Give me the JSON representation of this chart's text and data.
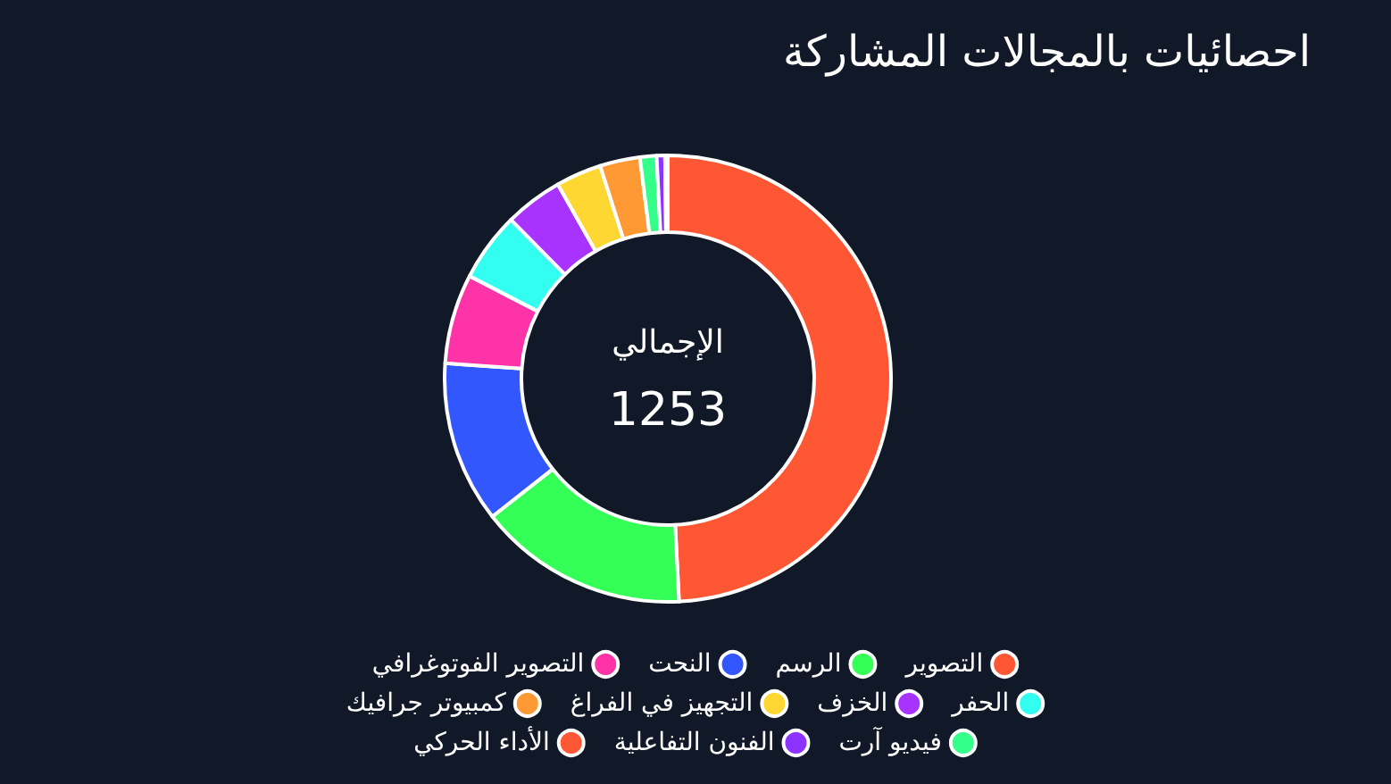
{
  "chart_data": {
    "type": "donut",
    "title": "احصائيات بالمجالات المشاركة",
    "categories": [
      "التصوير",
      "الرسم",
      "النحت",
      "التصوير الفوتوغرافي",
      "الحفر",
      "الخزف",
      "التجهيز في الفراغ",
      "كمبيوتر جرافيك",
      "فيديو آرت",
      "الفنون التفاعلية",
      "الأداء الحركي"
    ],
    "values": [
      49.2,
      15.2,
      11.7,
      6.5,
      5.0,
      4.2,
      3.3,
      2.9,
      1.2,
      0.6,
      0.2
    ],
    "colors": [
      "#ff5733",
      "#33ff57",
      "#3357ff",
      "#ff33a8",
      "#33fff0",
      "#a833ff",
      "#ffd733",
      "#ff9933",
      "#33ff8a",
      "#8c33ff",
      "#ff5733"
    ],
    "annotations": [
      "الإجمالي",
      "1253"
    ],
    "legend": "bottom"
  }
}
